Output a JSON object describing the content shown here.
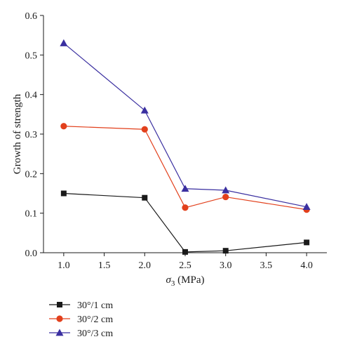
{
  "chart_data": {
    "type": "line",
    "xlabel": "σ3 (MPa)",
    "xlabel_parts": {
      "symbol": "σ",
      "subscript": "3",
      "unit": " (MPa)"
    },
    "ylabel": "Growth of strength",
    "xlim": [
      0.75,
      4.25
    ],
    "ylim": [
      0.0,
      0.6
    ],
    "x_ticks": [
      1.0,
      1.5,
      2.0,
      2.5,
      3.0,
      3.5,
      4.0
    ],
    "x_tick_labels": [
      "1.0",
      "1.5",
      "2.0",
      "2.5",
      "3.0",
      "3.5",
      "4.0"
    ],
    "y_ticks": [
      0.0,
      0.1,
      0.2,
      0.3,
      0.4,
      0.5,
      0.6
    ],
    "y_tick_labels": [
      "0.0",
      "0.1",
      "0.2",
      "0.3",
      "0.4",
      "0.5",
      "0.6"
    ],
    "grid": false,
    "legend_position": "bottom-left, below plot",
    "series": [
      {
        "name": "30°/1 cm",
        "marker": "square",
        "color": "#1a1a1a",
        "x": [
          1.0,
          2.0,
          2.5,
          3.0,
          4.0
        ],
        "y": [
          0.15,
          0.139,
          0.002,
          0.005,
          0.026
        ]
      },
      {
        "name": "30°/2 cm",
        "marker": "circle",
        "color": "#e2401c",
        "x": [
          1.0,
          2.0,
          2.5,
          3.0,
          4.0
        ],
        "y": [
          0.32,
          0.312,
          0.114,
          0.141,
          0.109
        ]
      },
      {
        "name": "30°/3 cm",
        "marker": "triangle",
        "color": "#3a2fa0",
        "x": [
          1.0,
          2.0,
          2.5,
          3.0,
          4.0
        ],
        "y": [
          0.53,
          0.36,
          0.162,
          0.158,
          0.116
        ]
      }
    ]
  }
}
